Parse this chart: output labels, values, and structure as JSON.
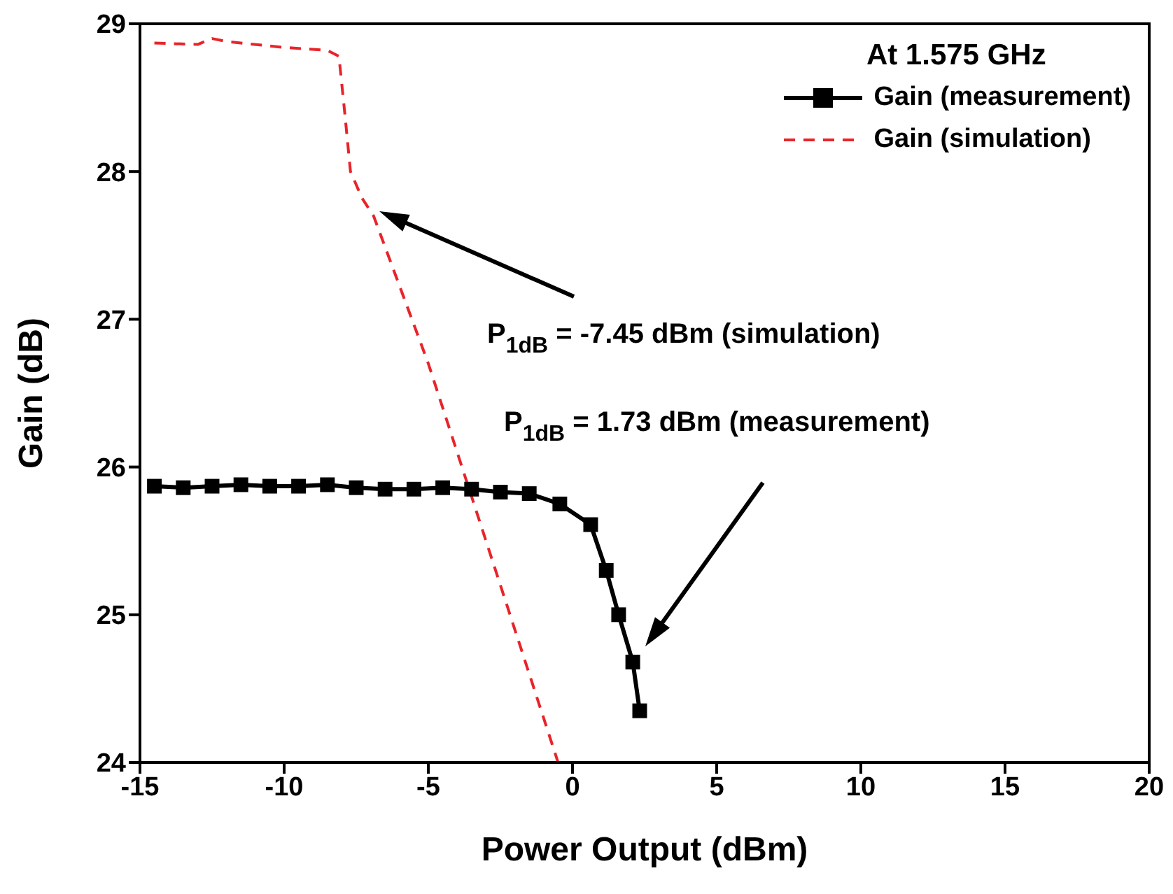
{
  "chart_data": {
    "type": "line",
    "xlabel": "Power Output (dBm)",
    "ylabel": "Gain (dB)",
    "legend_title": "At 1.575 GHz",
    "legend": "top right",
    "grid": false,
    "marker": "square",
    "xlim": [
      -15,
      20
    ],
    "xticks": [
      -15,
      -10,
      -5,
      0,
      5,
      10,
      15,
      20
    ],
    "ylim": [
      24,
      29
    ],
    "yticks": [
      24,
      25,
      26,
      27,
      28,
      29
    ],
    "series": [
      {
        "name": "Gain (measurement)",
        "color": "#000000",
        "line_style": "solid",
        "x": [
          -14.5,
          -13.5,
          -12.5,
          -11.5,
          -10.5,
          -9.5,
          -8.5,
          -7.5,
          -6.5,
          -5.5,
          -4.5,
          -3.5,
          -2.5,
          -1.5,
          -0.44,
          0.63,
          1.17,
          1.6,
          2.09,
          2.33
        ],
        "values": [
          25.87,
          25.86,
          25.87,
          25.88,
          25.87,
          25.87,
          25.88,
          25.86,
          25.85,
          25.85,
          25.86,
          25.85,
          25.83,
          25.82,
          25.75,
          25.61,
          25.3,
          25.0,
          24.68,
          24.35
        ]
      },
      {
        "name": "Gain (simulation)",
        "color": "#e8242a",
        "marker": "none",
        "line_style": "dashed",
        "x": [
          -14.5,
          -13,
          -12.5,
          -12,
          -10,
          -8.5,
          -8.1,
          -7.9,
          -7.7,
          -7.3,
          -6.9,
          -5,
          -3,
          -0.5
        ],
        "values": [
          28.87,
          28.86,
          28.9,
          28.88,
          28.84,
          28.82,
          28.78,
          28.4,
          28.0,
          27.82,
          27.7,
          26.7,
          25.5,
          24.0
        ]
      }
    ],
    "annotations": [
      "P$_{1dB}$ = -7.45 dBm (simulation)",
      "P$_{1dB}$ = 1.73 dBm (measurement)"
    ]
  }
}
